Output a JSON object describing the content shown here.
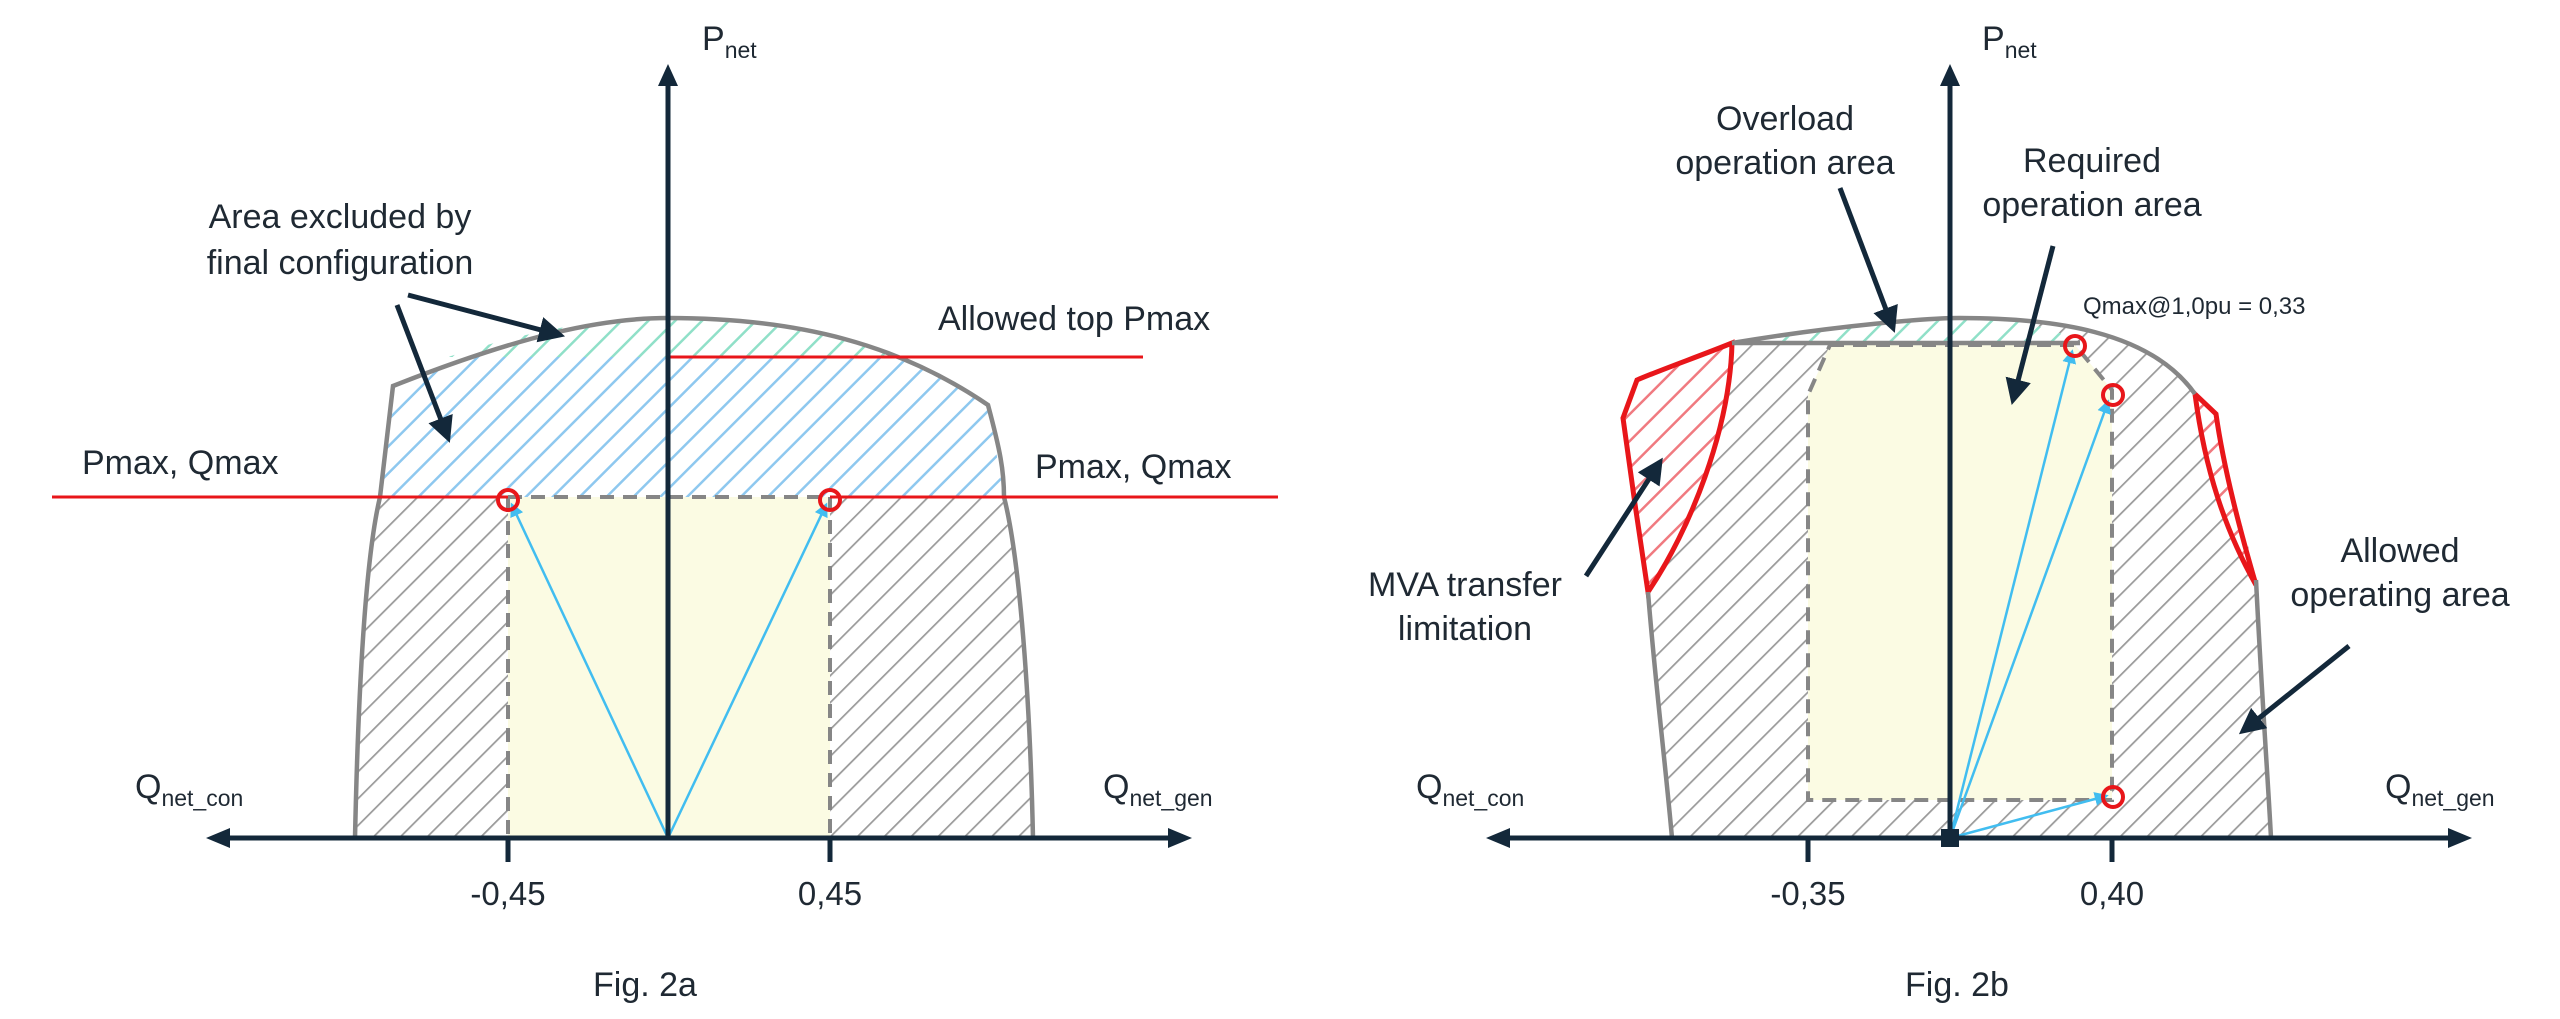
{
  "colors": {
    "outline": "#868686",
    "axis": "#13283a",
    "red": "#e8161a",
    "vector": "#41bdf0",
    "yellow": "#fbfbe3",
    "green_hatch": "#90e0c8",
    "blue_hatch": "#8ec8ef",
    "red_hatch": "#f07a80",
    "gray_hatch": "#9a9a9a"
  },
  "fig_a": {
    "y_axis": {
      "main": "P",
      "sub": "net"
    },
    "x_left": {
      "main": "Q",
      "sub": "net_con"
    },
    "x_right": {
      "main": "Q",
      "sub": "net_gen"
    },
    "ticks": [
      "-0,45",
      "0,45"
    ],
    "annotations": {
      "excluded_line1": "Area excluded by",
      "excluded_line2": "final configuration",
      "allowed_top": "Allowed top Pmax",
      "pmax_left": "Pmax, Qmax",
      "pmax_right": "Pmax, Qmax"
    },
    "caption": "Fig. 2a"
  },
  "fig_b": {
    "y_axis": {
      "main": "P",
      "sub": "net"
    },
    "x_left": {
      "main": "Q",
      "sub": "net_con"
    },
    "x_right": {
      "main": "Q",
      "sub": "net_gen"
    },
    "ticks": [
      "-0,35",
      "0,40"
    ],
    "annotations": {
      "overload_line1": "Overload",
      "overload_line2": "operation area",
      "required_line1": "Required",
      "required_line2": "operation area",
      "qmax_note": "Qmax@1,0pu = 0,33",
      "mva_line1": "MVA transfer",
      "mva_line2": "limitation",
      "allowed_line1": "Allowed",
      "allowed_line2": "operating area"
    },
    "caption": "Fig. 2b"
  }
}
